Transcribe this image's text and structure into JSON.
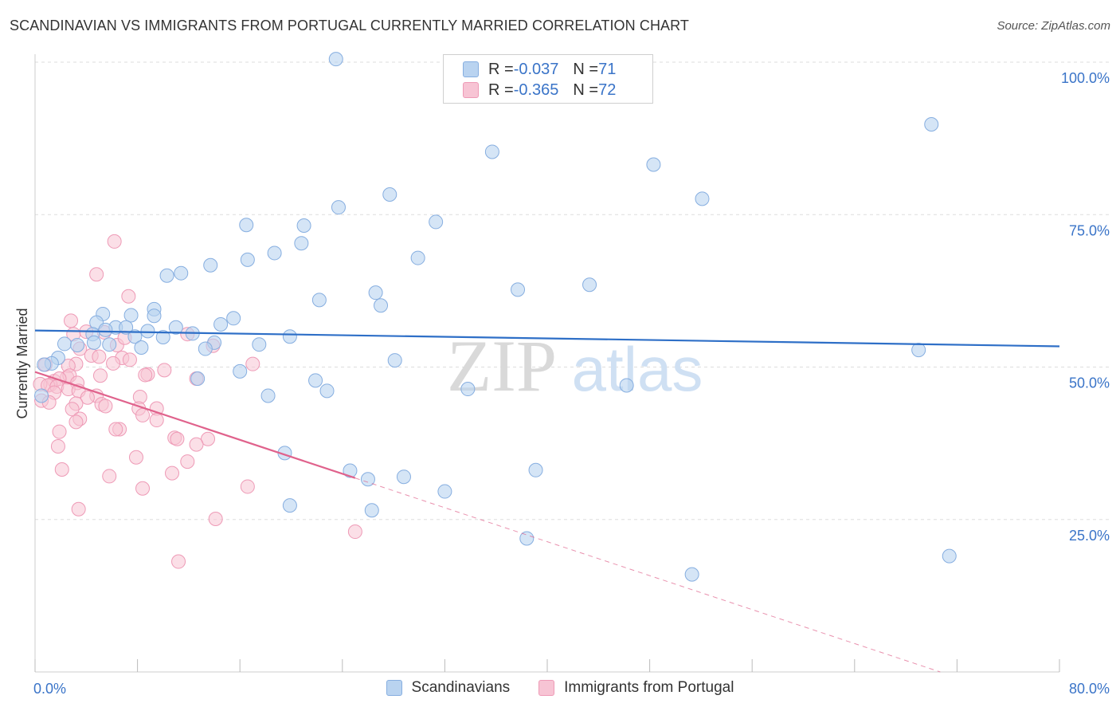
{
  "title": "SCANDINAVIAN VS IMMIGRANTS FROM PORTUGAL CURRENTLY MARRIED CORRELATION CHART",
  "source": "Source: ZipAtlas.com",
  "watermark": {
    "zip": "ZIP",
    "atlas": "atlas"
  },
  "legend": {
    "rows": [
      {
        "r_label": "R = ",
        "r_value": "-0.037",
        "n_label": "N = ",
        "n_value": "71"
      },
      {
        "r_label": "R = ",
        "r_value": "-0.365",
        "n_label": "N = ",
        "n_value": "72"
      }
    ]
  },
  "bottom_legend": {
    "series1": "Scandinavians",
    "series2": "Immigrants from Portugal"
  },
  "colors": {
    "blue_fill": "#b9d3f0",
    "blue_stroke": "#86aee0",
    "blue_line": "#2e6fc7",
    "pink_fill": "#f7c4d4",
    "pink_stroke": "#ee9ab6",
    "pink_line": "#e0628c",
    "axis_text": "#3a74c8",
    "grid": "#dddddd"
  },
  "chart_data": {
    "type": "scatter",
    "title": "SCANDINAVIAN VS IMMIGRANTS FROM PORTUGAL CURRENTLY MARRIED CORRELATION CHART",
    "xlabel": "",
    "ylabel": "Currently Married",
    "xlim": [
      0,
      80
    ],
    "ylim": [
      0,
      100
    ],
    "x_tick_labels": [
      "0.0%",
      "80.0%"
    ],
    "y_tick_labels": [
      "25.0%",
      "50.0%",
      "75.0%",
      "100.0%"
    ],
    "y_ticks": [
      25,
      50,
      75,
      100
    ],
    "grid": true,
    "legend_position": "top-center",
    "series": [
      {
        "name": "Scandinavians",
        "r": -0.037,
        "n": 71,
        "trend": {
          "x0": 0,
          "y0": 56.0,
          "x1": 80,
          "y1": 53.4
        },
        "points": [
          [
            23.5,
            100.5
          ],
          [
            70.0,
            89.8
          ],
          [
            35.7,
            85.3
          ],
          [
            48.3,
            83.2
          ],
          [
            27.7,
            78.3
          ],
          [
            52.1,
            77.6
          ],
          [
            23.7,
            76.2
          ],
          [
            31.3,
            73.8
          ],
          [
            21.0,
            73.2
          ],
          [
            16.5,
            73.3
          ],
          [
            20.8,
            70.3
          ],
          [
            18.7,
            68.7
          ],
          [
            29.9,
            67.9
          ],
          [
            16.6,
            67.6
          ],
          [
            13.7,
            66.7
          ],
          [
            11.4,
            65.4
          ],
          [
            10.3,
            65.0
          ],
          [
            43.3,
            63.5
          ],
          [
            37.7,
            62.7
          ],
          [
            26.6,
            62.2
          ],
          [
            22.2,
            61.0
          ],
          [
            27.0,
            60.1
          ],
          [
            9.3,
            59.5
          ],
          [
            5.3,
            58.7
          ],
          [
            7.5,
            58.5
          ],
          [
            9.3,
            58.4
          ],
          [
            15.5,
            58.0
          ],
          [
            4.8,
            57.3
          ],
          [
            14.5,
            57.0
          ],
          [
            6.3,
            56.5
          ],
          [
            7.1,
            56.5
          ],
          [
            11.0,
            56.5
          ],
          [
            5.5,
            56.1
          ],
          [
            8.8,
            55.9
          ],
          [
            12.3,
            55.5
          ],
          [
            4.5,
            55.4
          ],
          [
            7.8,
            55.0
          ],
          [
            19.9,
            55.0
          ],
          [
            10.0,
            54.9
          ],
          [
            4.6,
            54.0
          ],
          [
            14.0,
            54.0
          ],
          [
            2.3,
            53.8
          ],
          [
            5.8,
            53.7
          ],
          [
            8.3,
            53.2
          ],
          [
            17.5,
            53.7
          ],
          [
            13.3,
            53.0
          ],
          [
            3.3,
            53.6
          ],
          [
            69.0,
            52.8
          ],
          [
            28.1,
            51.1
          ],
          [
            1.8,
            51.5
          ],
          [
            1.3,
            50.6
          ],
          [
            0.7,
            50.4
          ],
          [
            16.0,
            49.3
          ],
          [
            12.7,
            48.1
          ],
          [
            21.9,
            47.8
          ],
          [
            46.2,
            47.0
          ],
          [
            33.8,
            46.4
          ],
          [
            22.8,
            46.1
          ],
          [
            0.5,
            45.3
          ],
          [
            18.2,
            45.3
          ],
          [
            19.5,
            35.9
          ],
          [
            24.6,
            33.0
          ],
          [
            39.1,
            33.1
          ],
          [
            28.8,
            32.0
          ],
          [
            26.0,
            31.6
          ],
          [
            32.0,
            29.6
          ],
          [
            19.9,
            27.3
          ],
          [
            26.3,
            26.5
          ],
          [
            38.4,
            21.9
          ],
          [
            51.3,
            16.0
          ],
          [
            71.4,
            19.0
          ]
        ]
      },
      {
        "name": "Immigrants from Portugal",
        "r": -0.365,
        "n": 72,
        "trend": {
          "x0": 0,
          "y0": 49.2,
          "x1": 25.0,
          "y1": 31.8,
          "dash_x1": 80,
          "dash_y1": -6.5
        },
        "points": [
          [
            6.2,
            70.6
          ],
          [
            4.8,
            65.2
          ],
          [
            7.3,
            61.6
          ],
          [
            2.8,
            57.6
          ],
          [
            4.0,
            55.8
          ],
          [
            3.0,
            55.4
          ],
          [
            11.9,
            55.4
          ],
          [
            6.4,
            53.6
          ],
          [
            13.9,
            53.5
          ],
          [
            3.5,
            53.0
          ],
          [
            4.4,
            51.9
          ],
          [
            5.0,
            51.7
          ],
          [
            6.8,
            51.5
          ],
          [
            7.4,
            51.2
          ],
          [
            6.1,
            50.6
          ],
          [
            3.2,
            50.5
          ],
          [
            2.6,
            50.2
          ],
          [
            0.8,
            50.4
          ],
          [
            17.0,
            50.5
          ],
          [
            10.1,
            49.5
          ],
          [
            8.8,
            48.8
          ],
          [
            8.6,
            48.7
          ],
          [
            5.1,
            48.6
          ],
          [
            2.5,
            48.3
          ],
          [
            1.5,
            47.7
          ],
          [
            2.7,
            48.6
          ],
          [
            1.9,
            48.1
          ],
          [
            1.2,
            47.1
          ],
          [
            0.4,
            47.2
          ],
          [
            3.3,
            47.4
          ],
          [
            1.0,
            47.0
          ],
          [
            1.7,
            46.8
          ],
          [
            2.6,
            46.4
          ],
          [
            3.4,
            46.1
          ],
          [
            1.5,
            45.8
          ],
          [
            4.8,
            45.3
          ],
          [
            4.1,
            45.0
          ],
          [
            8.2,
            45.1
          ],
          [
            0.5,
            44.5
          ],
          [
            1.1,
            44.2
          ],
          [
            3.2,
            44.0
          ],
          [
            5.2,
            43.9
          ],
          [
            5.5,
            43.6
          ],
          [
            2.9,
            43.1
          ],
          [
            8.1,
            43.2
          ],
          [
            9.5,
            43.2
          ],
          [
            8.4,
            42.1
          ],
          [
            9.5,
            41.3
          ],
          [
            3.5,
            41.5
          ],
          [
            3.2,
            41.0
          ],
          [
            6.6,
            39.8
          ],
          [
            6.3,
            39.8
          ],
          [
            1.9,
            39.4
          ],
          [
            10.9,
            38.4
          ],
          [
            11.1,
            38.2
          ],
          [
            13.5,
            38.2
          ],
          [
            12.6,
            37.3
          ],
          [
            1.8,
            37.0
          ],
          [
            7.9,
            35.2
          ],
          [
            11.9,
            34.5
          ],
          [
            2.1,
            33.2
          ],
          [
            10.7,
            32.6
          ],
          [
            5.8,
            32.1
          ],
          [
            16.6,
            30.4
          ],
          [
            8.4,
            30.1
          ],
          [
            3.4,
            26.7
          ],
          [
            14.1,
            25.1
          ],
          [
            25.0,
            23.0
          ],
          [
            11.2,
            18.1
          ],
          [
            5.4,
            55.7
          ],
          [
            7.0,
            54.8
          ],
          [
            12.6,
            48.1
          ]
        ]
      }
    ]
  }
}
